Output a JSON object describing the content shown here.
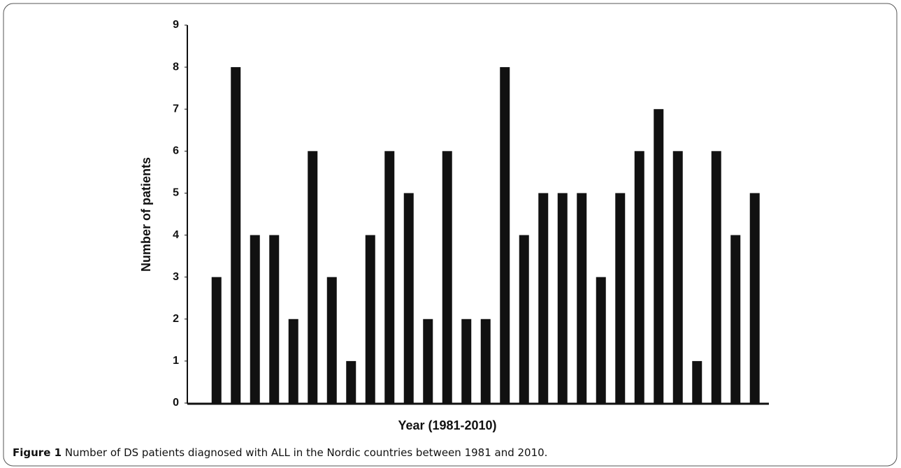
{
  "chart_data": {
    "type": "bar",
    "y_label": "Number of patients",
    "x_label": "Year (1981-2010)",
    "caption_label": "Figure 1",
    "caption": "Number of DS patients diagnosed with ALL in the Nordic countries between 1981 and 2010.",
    "categories": [
      null,
      null,
      null,
      null,
      null,
      null,
      null,
      null,
      null,
      null,
      null,
      null,
      null,
      null,
      null,
      null,
      null,
      null,
      null,
      null,
      null,
      null,
      null,
      null,
      null,
      null,
      null,
      null,
      null
    ],
    "values": [
      3,
      8,
      4,
      4,
      2,
      6,
      3,
      1,
      4,
      6,
      5,
      2,
      6,
      2,
      2,
      8,
      4,
      5,
      5,
      5,
      3,
      5,
      6,
      7,
      6,
      1,
      6,
      4,
      5
    ],
    "color": "#111111",
    "ylim": [
      0,
      9
    ],
    "yticks": [
      0,
      1,
      2,
      3,
      4,
      5,
      6,
      7,
      8,
      9
    ],
    "grid": false
  }
}
